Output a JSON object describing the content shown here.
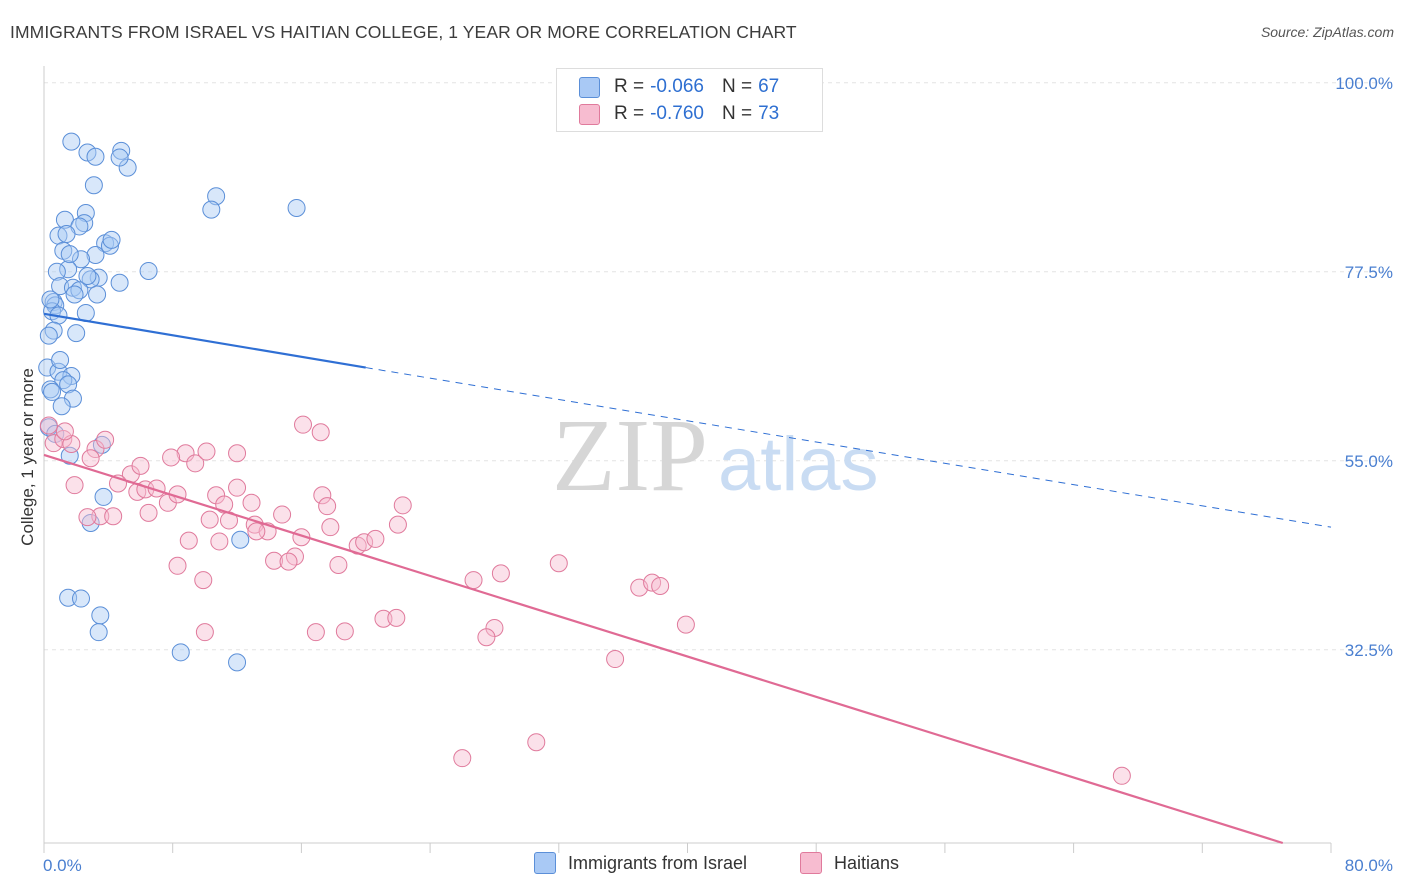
{
  "title": "IMMIGRANTS FROM ISRAEL VS HAITIAN COLLEGE, 1 YEAR OR MORE CORRELATION CHART",
  "source": "Source: ZipAtlas.com",
  "watermark": {
    "zip": "ZIP",
    "atlas": "atlas"
  },
  "legend": {
    "rows": [
      {
        "r_label": "R =",
        "r_value": "-0.066",
        "n_label": "N =",
        "n_value": "67",
        "color": "#a9c9f5",
        "stroke": "#5b8fd8"
      },
      {
        "r_label": "R =",
        "r_value": "-0.760",
        "n_label": "N =",
        "n_value": "73",
        "color": "#f7bcd0",
        "stroke": "#e07a9c"
      }
    ]
  },
  "bottom_legend": [
    {
      "label": "Immigrants from Israel",
      "color": "#a9c9f5",
      "stroke": "#5b8fd8"
    },
    {
      "label": "Haitians",
      "color": "#f7bcd0",
      "stroke": "#e07a9c"
    }
  ],
  "chart_data": {
    "type": "scatter",
    "ylabel": "College, 1 year or more",
    "x_tick_labels": [
      "0.0%",
      "80.0%"
    ],
    "y_tick_labels": [
      "100.0%",
      "77.5%",
      "55.0%",
      "32.5%"
    ],
    "y_ticks": [
      100.0,
      77.5,
      55.0,
      32.5
    ],
    "xlim": [
      0,
      80
    ],
    "ylim": [
      9.5,
      102
    ],
    "grid": true,
    "legend_placement": "top-center",
    "series": [
      {
        "name": "Immigrants from Israel",
        "color": "#5b8fd8",
        "fill": "rgba(169,201,245,0.45)",
        "trend": {
          "x0": 0,
          "y0": 72.5,
          "x1": 20,
          "y1": 66.1,
          "dashed_to_x": 80,
          "dashed_to_y": 47.1,
          "color": "#2f6fd4"
        },
        "points": [
          [
            1.7,
            93.0
          ],
          [
            2.7,
            91.7
          ],
          [
            3.2,
            91.2
          ],
          [
            4.8,
            91.9
          ],
          [
            5.2,
            89.9
          ],
          [
            4.7,
            91.1
          ],
          [
            3.1,
            87.8
          ],
          [
            10.7,
            86.5
          ],
          [
            10.4,
            84.9
          ],
          [
            15.7,
            85.1
          ],
          [
            2.6,
            84.5
          ],
          [
            1.3,
            83.7
          ],
          [
            2.5,
            83.3
          ],
          [
            2.2,
            82.9
          ],
          [
            0.9,
            81.8
          ],
          [
            1.4,
            82.0
          ],
          [
            3.8,
            80.9
          ],
          [
            4.1,
            80.6
          ],
          [
            1.2,
            80.0
          ],
          [
            3.2,
            79.5
          ],
          [
            2.3,
            79.0
          ],
          [
            1.5,
            77.8
          ],
          [
            0.8,
            77.5
          ],
          [
            6.5,
            77.6
          ],
          [
            3.4,
            76.8
          ],
          [
            2.9,
            76.6
          ],
          [
            1.0,
            75.8
          ],
          [
            4.7,
            76.2
          ],
          [
            1.8,
            75.6
          ],
          [
            2.2,
            75.3
          ],
          [
            1.9,
            74.8
          ],
          [
            0.6,
            73.9
          ],
          [
            0.7,
            73.5
          ],
          [
            0.5,
            72.8
          ],
          [
            0.9,
            72.3
          ],
          [
            2.6,
            72.6
          ],
          [
            0.6,
            70.5
          ],
          [
            0.3,
            69.9
          ],
          [
            0.2,
            66.1
          ],
          [
            0.9,
            65.6
          ],
          [
            1.7,
            65.1
          ],
          [
            1.2,
            64.6
          ],
          [
            1.5,
            64.1
          ],
          [
            0.4,
            63.5
          ],
          [
            0.5,
            63.2
          ],
          [
            1.8,
            62.4
          ],
          [
            3.6,
            56.9
          ],
          [
            1.6,
            55.6
          ],
          [
            3.7,
            50.7
          ],
          [
            2.9,
            47.6
          ],
          [
            12.2,
            45.6
          ],
          [
            1.5,
            38.7
          ],
          [
            2.3,
            38.6
          ],
          [
            3.5,
            36.6
          ],
          [
            3.4,
            34.6
          ],
          [
            8.5,
            32.2
          ],
          [
            12.0,
            31.0
          ],
          [
            0.3,
            59.0
          ],
          [
            0.7,
            58.2
          ],
          [
            1.1,
            61.5
          ],
          [
            2.0,
            70.2
          ],
          [
            4.2,
            81.3
          ],
          [
            1.6,
            79.6
          ],
          [
            0.4,
            74.2
          ],
          [
            2.7,
            77.0
          ],
          [
            1.0,
            67.0
          ],
          [
            3.3,
            74.8
          ]
        ]
      },
      {
        "name": "Haitians",
        "color": "#e07a9c",
        "fill": "rgba(247,188,208,0.45)",
        "trend": {
          "x0": 0,
          "y0": 55.7,
          "x1": 77,
          "y1": 9.5,
          "color": "#e06a94"
        },
        "points": [
          [
            0.3,
            59.2
          ],
          [
            0.6,
            57.1
          ],
          [
            1.2,
            57.6
          ],
          [
            1.7,
            57.0
          ],
          [
            3.2,
            56.4
          ],
          [
            3.8,
            57.5
          ],
          [
            2.9,
            55.3
          ],
          [
            5.4,
            53.4
          ],
          [
            5.8,
            51.3
          ],
          [
            4.6,
            52.3
          ],
          [
            1.9,
            52.1
          ],
          [
            3.5,
            48.4
          ],
          [
            2.7,
            48.3
          ],
          [
            6.0,
            54.4
          ],
          [
            6.3,
            51.6
          ],
          [
            7.0,
            51.7
          ],
          [
            6.5,
            48.8
          ],
          [
            7.7,
            50.0
          ],
          [
            8.3,
            51.0
          ],
          [
            8.8,
            55.9
          ],
          [
            9.4,
            54.7
          ],
          [
            7.9,
            55.4
          ],
          [
            9.0,
            45.5
          ],
          [
            8.3,
            42.5
          ],
          [
            9.9,
            40.8
          ],
          [
            10.3,
            48.0
          ],
          [
            10.7,
            50.9
          ],
          [
            11.2,
            49.8
          ],
          [
            11.5,
            47.9
          ],
          [
            10.9,
            45.4
          ],
          [
            12.0,
            51.8
          ],
          [
            12.9,
            50.0
          ],
          [
            13.1,
            47.4
          ],
          [
            13.9,
            46.6
          ],
          [
            14.8,
            48.6
          ],
          [
            16.1,
            59.3
          ],
          [
            17.3,
            50.9
          ],
          [
            17.6,
            49.6
          ],
          [
            17.8,
            47.1
          ],
          [
            16.0,
            45.9
          ],
          [
            15.6,
            43.6
          ],
          [
            14.3,
            43.1
          ],
          [
            15.2,
            43.0
          ],
          [
            17.2,
            58.4
          ],
          [
            12.0,
            55.9
          ],
          [
            13.2,
            46.6
          ],
          [
            18.3,
            42.6
          ],
          [
            19.5,
            44.9
          ],
          [
            19.9,
            45.3
          ],
          [
            20.6,
            45.7
          ],
          [
            22.0,
            47.4
          ],
          [
            22.3,
            49.7
          ],
          [
            21.1,
            36.2
          ],
          [
            21.9,
            36.3
          ],
          [
            18.7,
            34.7
          ],
          [
            16.9,
            34.6
          ],
          [
            10.0,
            34.6
          ],
          [
            26.7,
            40.8
          ],
          [
            28.4,
            41.6
          ],
          [
            28.0,
            35.1
          ],
          [
            27.5,
            34.0
          ],
          [
            32.0,
            42.8
          ],
          [
            37.0,
            39.9
          ],
          [
            37.8,
            40.5
          ],
          [
            38.3,
            40.1
          ],
          [
            39.9,
            35.5
          ],
          [
            35.5,
            31.4
          ],
          [
            30.6,
            21.5
          ],
          [
            26.0,
            19.6
          ],
          [
            67.0,
            17.5
          ],
          [
            10.1,
            56.1
          ],
          [
            4.3,
            48.4
          ],
          [
            1.3,
            58.5
          ]
        ]
      }
    ]
  }
}
